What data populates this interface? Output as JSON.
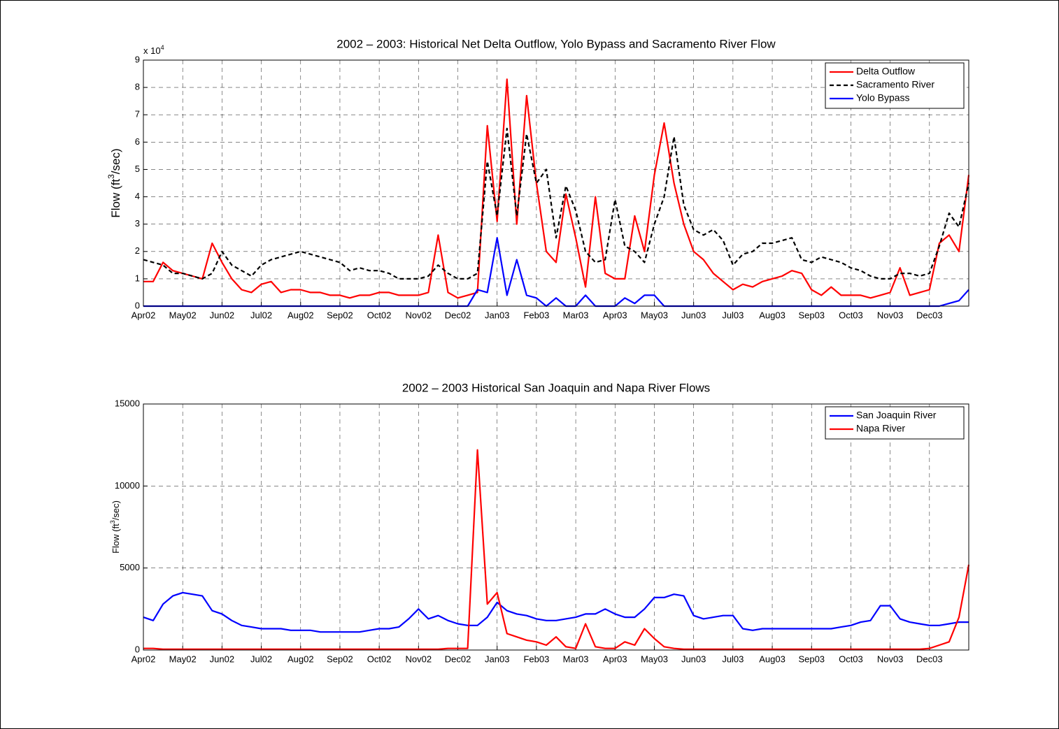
{
  "chart_data": [
    {
      "type": "line",
      "title": "2002 – 2003: Historical Net Delta Outflow, Yolo Bypass and Sacramento River Flow",
      "ylabel": {
        "text": "Flow (ft",
        "sup": "3",
        "tail": "/sec)"
      },
      "y_multiplier": {
        "text": "x 10",
        "sup": "4"
      },
      "xlim": [
        0,
        21
      ],
      "ylim": [
        0,
        9
      ],
      "yticks": [
        0,
        1,
        2,
        3,
        4,
        5,
        6,
        7,
        8,
        9
      ],
      "xticks": [
        {
          "value": 0,
          "label": "Apr02"
        },
        {
          "value": 1,
          "label": "May02"
        },
        {
          "value": 2,
          "label": "Jun02"
        },
        {
          "value": 3,
          "label": "Jul02"
        },
        {
          "value": 4,
          "label": "Aug02"
        },
        {
          "value": 5,
          "label": "Sep02"
        },
        {
          "value": 6,
          "label": "Oct02"
        },
        {
          "value": 7,
          "label": "Nov02"
        },
        {
          "value": 8,
          "label": "Dec02"
        },
        {
          "value": 9,
          "label": "Jan03"
        },
        {
          "value": 10,
          "label": "Feb03"
        },
        {
          "value": 11,
          "label": "Mar03"
        },
        {
          "value": 12,
          "label": "Apr03"
        },
        {
          "value": 13,
          "label": "May03"
        },
        {
          "value": 14,
          "label": "Jun03"
        },
        {
          "value": 15,
          "label": "Jul03"
        },
        {
          "value": 16,
          "label": "Aug03"
        },
        {
          "value": 17,
          "label": "Sep03"
        },
        {
          "value": 18,
          "label": "Oct03"
        },
        {
          "value": 19,
          "label": "Nov03"
        },
        {
          "value": 20,
          "label": "Dec03"
        }
      ],
      "grid": true,
      "legend": "upper right",
      "x": [
        0,
        0.25,
        0.5,
        0.75,
        1,
        1.25,
        1.5,
        1.75,
        2,
        2.25,
        2.5,
        2.75,
        3,
        3.25,
        3.5,
        3.75,
        4,
        4.25,
        4.5,
        4.75,
        5,
        5.25,
        5.5,
        5.75,
        6,
        6.25,
        6.5,
        6.75,
        7,
        7.25,
        7.5,
        7.75,
        8,
        8.25,
        8.5,
        8.75,
        9,
        9.25,
        9.5,
        9.75,
        10,
        10.25,
        10.5,
        10.75,
        11,
        11.25,
        11.5,
        11.75,
        12,
        12.25,
        12.5,
        12.75,
        13,
        13.25,
        13.5,
        13.75,
        14,
        14.25,
        14.5,
        14.75,
        15,
        15.25,
        15.5,
        15.75,
        16,
        16.25,
        16.5,
        16.75,
        17,
        17.25,
        17.5,
        17.75,
        18,
        18.25,
        18.5,
        18.75,
        19,
        19.25,
        19.5,
        19.75,
        20,
        20.25,
        20.5,
        20.75,
        21
      ],
      "series": [
        {
          "name": "Delta Outflow",
          "color": "#ff0000",
          "dash": false,
          "values": [
            0.9,
            0.9,
            1.6,
            1.3,
            1.2,
            1.1,
            1.0,
            2.3,
            1.6,
            1.0,
            0.6,
            0.5,
            0.8,
            0.9,
            0.5,
            0.6,
            0.6,
            0.5,
            0.5,
            0.4,
            0.4,
            0.3,
            0.4,
            0.4,
            0.5,
            0.5,
            0.4,
            0.4,
            0.4,
            0.5,
            2.6,
            0.5,
            0.3,
            0.4,
            0.5,
            6.6,
            3.1,
            8.3,
            3.0,
            7.7,
            4.5,
            2.0,
            1.6,
            4.1,
            2.5,
            0.7,
            4.0,
            1.2,
            1.0,
            1.0,
            3.3,
            2.0,
            4.8,
            6.7,
            4.5,
            3.0,
            2.0,
            1.7,
            1.2,
            0.9,
            0.6,
            0.8,
            0.7,
            0.9,
            1.0,
            1.1,
            1.3,
            1.2,
            0.6,
            0.4,
            0.7,
            0.4,
            0.4,
            0.4,
            0.3,
            0.4,
            0.5,
            1.4,
            0.4,
            0.5,
            0.6,
            2.3,
            2.6,
            2.0,
            4.8
          ]
        },
        {
          "name": "Sacramento River",
          "color": "#000000",
          "dash": true,
          "values": [
            1.7,
            1.6,
            1.5,
            1.2,
            1.2,
            1.1,
            1.0,
            1.2,
            2.0,
            1.5,
            1.3,
            1.1,
            1.5,
            1.7,
            1.8,
            1.9,
            2.0,
            1.9,
            1.8,
            1.7,
            1.6,
            1.3,
            1.4,
            1.3,
            1.3,
            1.2,
            1.0,
            1.0,
            1.0,
            1.1,
            1.5,
            1.2,
            1.0,
            1.0,
            1.2,
            5.3,
            3.3,
            6.5,
            3.3,
            6.3,
            4.5,
            5.0,
            2.5,
            4.4,
            3.5,
            2.0,
            1.6,
            1.7,
            3.9,
            2.2,
            2.0,
            1.6,
            3.0,
            4.0,
            6.2,
            3.7,
            2.8,
            2.6,
            2.8,
            2.4,
            1.5,
            1.9,
            2.0,
            2.3,
            2.3,
            2.4,
            2.5,
            1.7,
            1.6,
            1.8,
            1.7,
            1.6,
            1.4,
            1.3,
            1.1,
            1.0,
            1.0,
            1.2,
            1.2,
            1.1,
            1.2,
            2.2,
            3.4,
            2.9,
            4.5
          ]
        },
        {
          "name": "Yolo Bypass",
          "color": "#0000ff",
          "dash": false,
          "values": [
            0,
            0,
            0,
            0,
            0,
            0,
            0,
            0,
            0,
            0,
            0,
            0,
            0,
            0,
            0,
            0,
            0,
            0,
            0,
            0,
            0,
            0,
            0,
            0,
            0,
            0,
            0,
            0,
            0,
            0,
            0,
            0,
            0,
            0,
            0.6,
            0.5,
            2.5,
            0.4,
            1.7,
            0.4,
            0.3,
            0,
            0.3,
            0,
            0,
            0.4,
            0,
            0,
            0,
            0.3,
            0.1,
            0.4,
            0.4,
            0,
            0,
            0,
            0,
            0,
            0,
            0,
            0,
            0,
            0,
            0,
            0,
            0,
            0,
            0,
            0,
            0,
            0,
            0,
            0,
            0,
            0,
            0,
            0,
            0,
            0,
            0,
            0,
            0,
            0.1,
            0.2,
            0.6
          ]
        }
      ]
    },
    {
      "type": "line",
      "title": "2002 – 2003 Historical San Joaquin and Napa River Flows",
      "ylabel": {
        "text": "Flow (ft",
        "sup": "3",
        "tail": "/sec)"
      },
      "xlim": [
        0,
        21
      ],
      "ylim": [
        0,
        15000
      ],
      "yticks": [
        0,
        5000,
        10000,
        15000
      ],
      "xticks": [
        {
          "value": 0,
          "label": "Apr02"
        },
        {
          "value": 1,
          "label": "May02"
        },
        {
          "value": 2,
          "label": "Jun02"
        },
        {
          "value": 3,
          "label": "Jul02"
        },
        {
          "value": 4,
          "label": "Aug02"
        },
        {
          "value": 5,
          "label": "Sep02"
        },
        {
          "value": 6,
          "label": "Oct02"
        },
        {
          "value": 7,
          "label": "Nov02"
        },
        {
          "value": 8,
          "label": "Dec02"
        },
        {
          "value": 9,
          "label": "Jan03"
        },
        {
          "value": 10,
          "label": "Feb03"
        },
        {
          "value": 11,
          "label": "Mar03"
        },
        {
          "value": 12,
          "label": "Apr03"
        },
        {
          "value": 13,
          "label": "May03"
        },
        {
          "value": 14,
          "label": "Jun03"
        },
        {
          "value": 15,
          "label": "Jul03"
        },
        {
          "value": 16,
          "label": "Aug03"
        },
        {
          "value": 17,
          "label": "Sep03"
        },
        {
          "value": 18,
          "label": "Oct03"
        },
        {
          "value": 19,
          "label": "Nov03"
        },
        {
          "value": 20,
          "label": "Dec03"
        }
      ],
      "grid": true,
      "legend": "upper right",
      "x": [
        0,
        0.25,
        0.5,
        0.75,
        1,
        1.25,
        1.5,
        1.75,
        2,
        2.25,
        2.5,
        2.75,
        3,
        3.25,
        3.5,
        3.75,
        4,
        4.25,
        4.5,
        4.75,
        5,
        5.25,
        5.5,
        5.75,
        6,
        6.25,
        6.5,
        6.75,
        7,
        7.25,
        7.5,
        7.75,
        8,
        8.25,
        8.5,
        8.75,
        9,
        9.25,
        9.5,
        9.75,
        10,
        10.25,
        10.5,
        10.75,
        11,
        11.25,
        11.5,
        11.75,
        12,
        12.25,
        12.5,
        12.75,
        13,
        13.25,
        13.5,
        13.75,
        14,
        14.25,
        14.5,
        14.75,
        15,
        15.25,
        15.5,
        15.75,
        16,
        16.25,
        16.5,
        16.75,
        17,
        17.25,
        17.5,
        17.75,
        18,
        18.25,
        18.5,
        18.75,
        19,
        19.25,
        19.5,
        19.75,
        20,
        20.25,
        20.5,
        20.75,
        21
      ],
      "series": [
        {
          "name": "San Joaquin River",
          "color": "#0000ff",
          "dash": false,
          "values": [
            2000,
            1800,
            2800,
            3300,
            3500,
            3400,
            3300,
            2400,
            2200,
            1800,
            1500,
            1400,
            1300,
            1300,
            1300,
            1200,
            1200,
            1200,
            1100,
            1100,
            1100,
            1100,
            1100,
            1200,
            1300,
            1300,
            1400,
            1900,
            2500,
            1900,
            2100,
            1800,
            1600,
            1500,
            1500,
            2000,
            2900,
            2400,
            2200,
            2100,
            1900,
            1800,
            1800,
            1900,
            2000,
            2200,
            2200,
            2500,
            2200,
            2000,
            2000,
            2500,
            3200,
            3200,
            3400,
            3300,
            2100,
            1900,
            2000,
            2100,
            2100,
            1300,
            1200,
            1300,
            1300,
            1300,
            1300,
            1300,
            1300,
            1300,
            1300,
            1400,
            1500,
            1700,
            1800,
            2700,
            2700,
            1900,
            1700,
            1600,
            1500,
            1500,
            1600,
            1700,
            1700
          ]
        },
        {
          "name": "Napa River",
          "color": "#ff0000",
          "dash": false,
          "values": [
            100,
            100,
            50,
            50,
            50,
            50,
            50,
            50,
            50,
            50,
            50,
            50,
            50,
            50,
            50,
            50,
            50,
            50,
            50,
            50,
            50,
            50,
            50,
            50,
            50,
            50,
            50,
            50,
            50,
            50,
            50,
            100,
            100,
            100,
            12200,
            2800,
            3500,
            1000,
            800,
            600,
            500,
            300,
            800,
            200,
            100,
            1600,
            200,
            100,
            100,
            500,
            300,
            1300,
            700,
            200,
            100,
            50,
            50,
            50,
            50,
            50,
            50,
            50,
            50,
            50,
            50,
            50,
            50,
            50,
            50,
            50,
            50,
            50,
            50,
            50,
            50,
            50,
            50,
            50,
            50,
            50,
            100,
            300,
            500,
            2000,
            5200
          ]
        }
      ]
    }
  ]
}
